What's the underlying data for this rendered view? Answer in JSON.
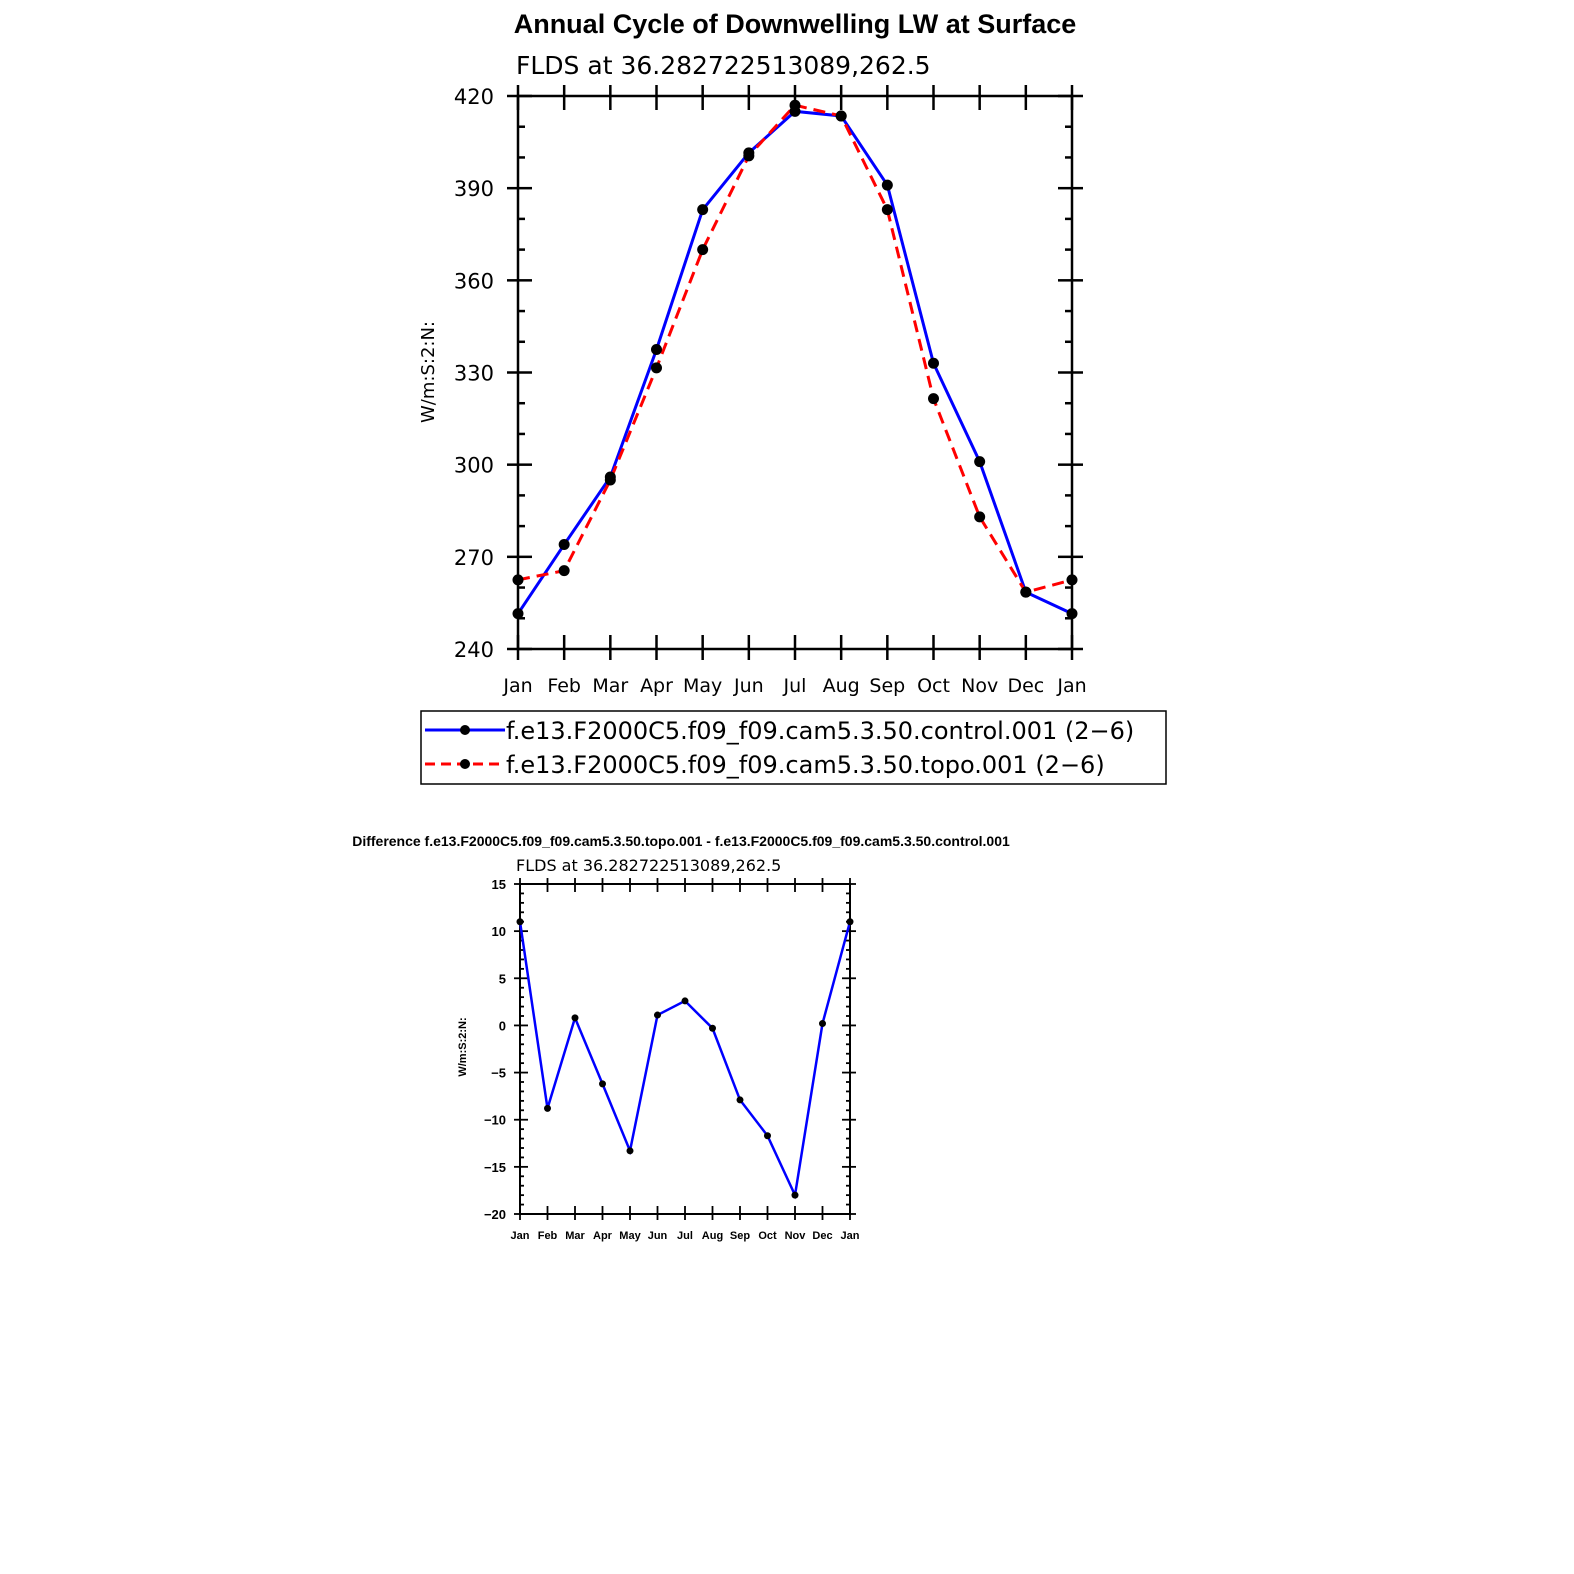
{
  "chart_data": [
    {
      "type": "line",
      "title": "Annual Cycle of Downwelling LW at Surface",
      "subtitle": "FLDS at 36.282722513089,262.5",
      "ylabel": "W/m:S:2:N:",
      "ylim": [
        240,
        420
      ],
      "yticks": [
        "240",
        "270",
        "300",
        "330",
        "360",
        "390",
        "420"
      ],
      "categories": [
        "Jan",
        "Feb",
        "Mar",
        "Apr",
        "May",
        "Jun",
        "Jul",
        "Aug",
        "Sep",
        "Oct",
        "Nov",
        "Dec",
        "Jan"
      ],
      "series": [
        {
          "name": "f.e13.F2000C5.f09_f09.cam5.3.50.control.001 (2−6)",
          "color": "#0000ff",
          "style": "solid",
          "values": [
            251.5,
            274,
            296,
            337.5,
            383,
            401.5,
            415,
            413.5,
            391,
            333,
            301,
            258.5,
            251.5
          ]
        },
        {
          "name": "f.e13.F2000C5.f09_f09.cam5.3.50.topo.001 (2−6)",
          "color": "#ff0000",
          "style": "dashed",
          "values": [
            262.5,
            265.5,
            295,
            331.5,
            370,
            400.5,
            417,
            413.5,
            383,
            321.5,
            283,
            258.5,
            262.5
          ]
        }
      ],
      "legend": "bottom"
    },
    {
      "type": "line",
      "title": "Difference f.e13.F2000C5.f09_f09.cam5.3.50.topo.001 - f.e13.F2000C5.f09_f09.cam5.3.50.control.001",
      "subtitle": "FLDS at 36.282722513089,262.5",
      "ylabel": "W/m:S:2:N:",
      "ylim": [
        -20,
        15
      ],
      "yticks": [
        "−20",
        "−15",
        "−10",
        "−5",
        "0",
        "5",
        "10",
        "15"
      ],
      "categories": [
        "Jan",
        "Feb",
        "Mar",
        "Apr",
        "May",
        "Jun",
        "Jul",
        "Aug",
        "Sep",
        "Oct",
        "Nov",
        "Dec",
        "Jan"
      ],
      "series": [
        {
          "color": "#0000ff",
          "style": "solid",
          "values": [
            11,
            -8.8,
            0.8,
            -6.2,
            -13.3,
            1.1,
            2.6,
            -0.3,
            -7.9,
            -11.7,
            -18,
            0.2,
            11
          ]
        }
      ]
    }
  ]
}
